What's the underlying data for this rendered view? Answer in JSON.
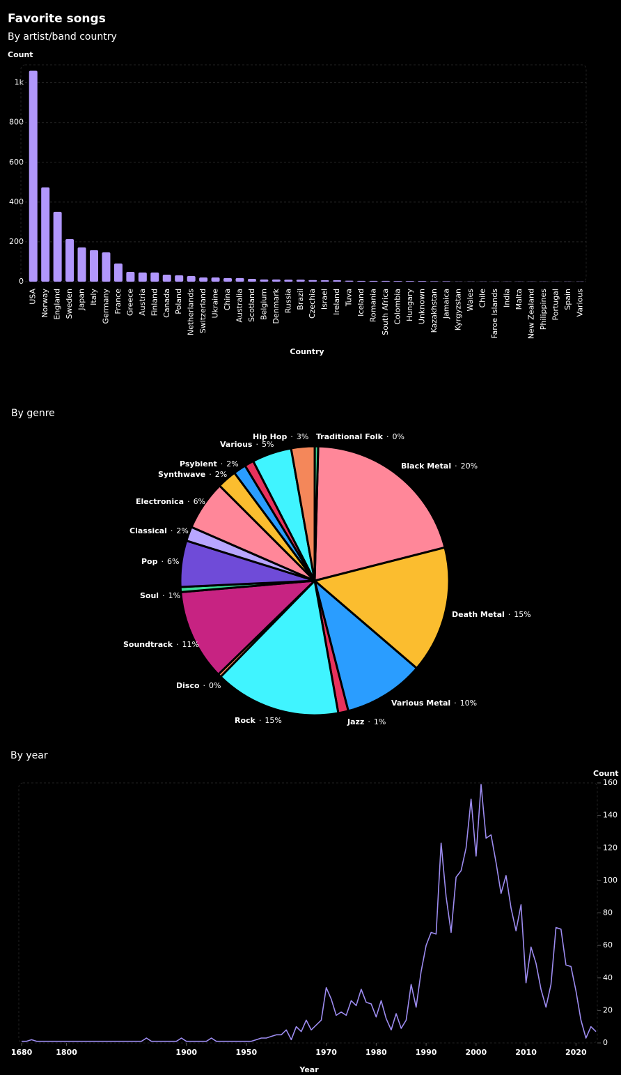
{
  "chart_data": [
    {
      "type": "bar",
      "title": "Favorite songs",
      "subtitle": "By artist/band country",
      "ylabel": "Count",
      "xlabel": "Country",
      "categories": [
        "USA",
        "Norway",
        "England",
        "Sweden",
        "Japan",
        "Italy",
        "Germany",
        "France",
        "Greece",
        "Austria",
        "Finland",
        "Canada",
        "Poland",
        "Netherlands",
        "Switzerland",
        "Ukraine",
        "China",
        "Australia",
        "Scotland",
        "Belgium",
        "Denmark",
        "Russia",
        "Brazil",
        "Czechia",
        "Israel",
        "Ireland",
        "Tuva",
        "Iceland",
        "Romania",
        "South Africa",
        "Colombia",
        "Hungary",
        "Unknown",
        "Kazakhstan",
        "Jamaica",
        "Kyrgyzstan",
        "Wales",
        "Chile",
        "Faroe Islands",
        "India",
        "Malta",
        "New Zealand",
        "Philippines",
        "Portugal",
        "Spain",
        "Various"
      ],
      "values": [
        1060,
        474,
        351,
        214,
        172,
        158,
        147,
        91,
        49,
        46,
        46,
        35,
        32,
        28,
        21,
        21,
        18,
        18,
        14,
        11,
        11,
        10,
        10,
        8,
        7,
        7,
        5,
        4,
        4,
        4,
        3,
        3,
        3,
        2,
        2,
        1,
        1,
        1,
        1,
        1,
        1,
        1,
        1,
        1,
        1,
        1
      ],
      "color": "#b197fc",
      "ylim": [
        0,
        1090
      ],
      "yticks": [
        0,
        200,
        400,
        600,
        800,
        {
          "value": 1000,
          "label": "1k"
        }
      ],
      "grid": true
    },
    {
      "type": "pie",
      "title": "By genre",
      "label_separator": "·",
      "categories": [
        "Black Metal",
        "Death Metal",
        "Various Metal",
        "Jazz",
        "Rock",
        "Disco",
        "Soundtrack",
        "Soul",
        "Pop",
        "Classical",
        "Electronica",
        "Synthwave",
        "Psybient",
        null,
        "Various",
        "Hip Hop",
        "Traditional Folk"
      ],
      "values": [
        20.4,
        15.1,
        9.6,
        1.2,
        15.0,
        0.4,
        10.8,
        0.6,
        5.5,
        1.7,
        5.9,
        2.3,
        1.5,
        1.1,
        4.7,
        2.8,
        0.4
      ],
      "value_labels": [
        "20%",
        "15%",
        "10%",
        "1%",
        "15%",
        "0%",
        "11%",
        "1%",
        "6%",
        "2%",
        "6%",
        "2%",
        "2%",
        null,
        "5%",
        "3%",
        "0%"
      ],
      "colors": [
        "#ff8799",
        "#fbbd2f",
        "#2a9dff",
        "#e8315c",
        "#40f4ff",
        "#f4875a",
        "#c72382",
        "#3ddc97",
        "#6f4bd8",
        "#b8a6ff",
        "#ff8799",
        "#fbbd2f",
        "#2a9dff",
        "#e8315c",
        "#40f4ff",
        "#f4875a",
        "#3ddc97"
      ]
    },
    {
      "type": "line",
      "title": "By year",
      "ylabel": "Count",
      "xlabel": "Year",
      "yaxis_side": "right",
      "color": "#9d8cf0",
      "categories": [
        1680,
        null,
        null,
        null,
        null,
        null,
        null,
        null,
        null,
        1800,
        null,
        null,
        null,
        null,
        null,
        null,
        null,
        null,
        null,
        null,
        null,
        null,
        null,
        null,
        null,
        null,
        null,
        null,
        null,
        null,
        null,
        null,
        null,
        1900,
        null,
        null,
        null,
        null,
        null,
        null,
        null,
        null,
        null,
        null,
        null,
        1950,
        null,
        null,
        null,
        null,
        null,
        null,
        null,
        null,
        null,
        null,
        null,
        null,
        null,
        null,
        null,
        1970,
        null,
        null,
        null,
        null,
        null,
        null,
        null,
        null,
        null,
        1980,
        null,
        null,
        null,
        null,
        null,
        null,
        null,
        null,
        null,
        1990,
        null,
        null,
        null,
        null,
        null,
        null,
        null,
        null,
        null,
        2000,
        null,
        null,
        null,
        null,
        null,
        null,
        null,
        null,
        null,
        2010,
        null,
        null,
        null,
        null,
        null,
        null,
        null,
        null,
        null,
        2020,
        null,
        null,
        null,
        null
      ],
      "values": [
        1,
        1,
        2,
        1,
        1,
        1,
        1,
        1,
        1,
        1,
        1,
        1,
        1,
        1,
        1,
        1,
        1,
        1,
        1,
        1,
        1,
        1,
        1,
        1,
        1,
        3,
        1,
        1,
        1,
        1,
        1,
        1,
        3,
        1,
        1,
        1,
        1,
        1,
        3,
        1,
        1,
        1,
        1,
        1,
        1,
        1,
        1,
        2,
        3,
        3,
        4,
        5,
        5,
        8,
        2,
        10,
        7,
        14,
        8,
        11,
        14,
        34,
        27,
        17,
        19,
        17,
        26,
        23,
        33,
        25,
        24,
        16,
        26,
        15,
        8,
        18,
        9,
        14,
        36,
        22,
        44,
        60,
        68,
        67,
        123,
        90,
        68,
        102,
        106,
        120,
        150,
        115,
        159,
        126,
        128,
        111,
        92,
        103,
        83,
        69,
        85,
        37,
        59,
        49,
        33,
        22,
        36,
        71,
        70,
        48,
        47,
        32,
        14,
        3,
        10,
        7
      ],
      "ylim": [
        0,
        160
      ],
      "yticks": [
        0,
        20,
        40,
        60,
        80,
        100,
        120,
        140,
        160
      ]
    }
  ]
}
